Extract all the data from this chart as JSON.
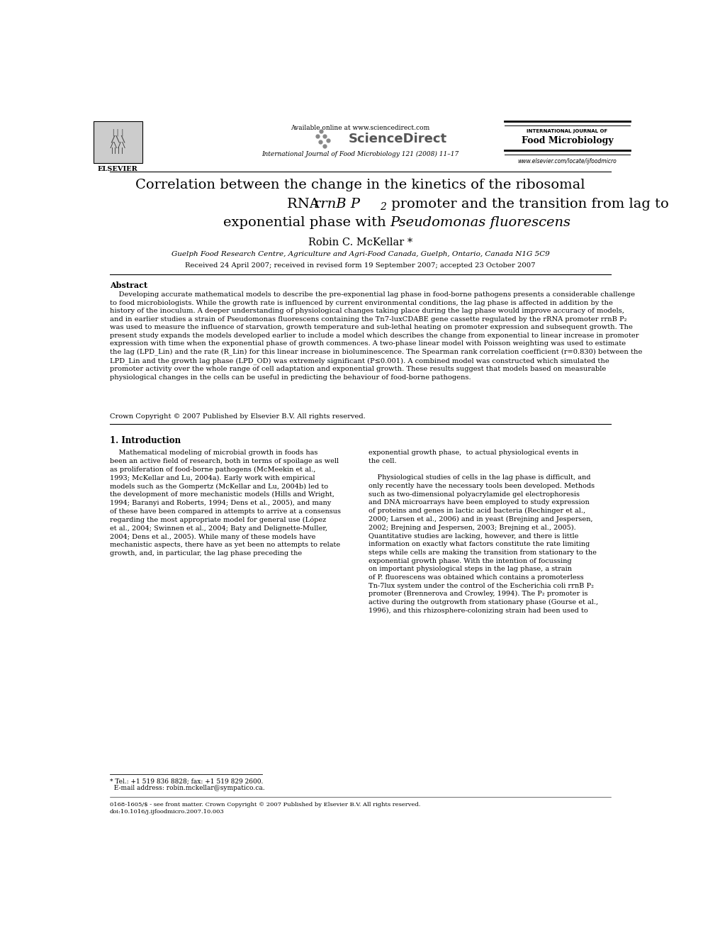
{
  "bg_color": "#ffffff",
  "author": "Robin C. McKellar *",
  "affiliation": "Guelph Food Research Centre, Agriculture and Agri-Food Canada, Guelph, Ontario, Canada N1G 5C9",
  "received": "Received 24 April 2007; received in revised form 19 September 2007; accepted 23 October 2007",
  "journal_header": "International Journal of Food Microbiology 121 (2008) 11–17",
  "available_online": "Available online at www.sciencedirect.com",
  "journal_name_top": "INTERNATIONAL JOURNAL OF",
  "journal_name_bottom": "Food Microbiology",
  "elsevier_label": "ELSEVIER",
  "website": "www.elsevier.com/locate/ijfoodmicro",
  "abstract_heading": "Abstract",
  "crown_copyright": "Crown Copyright © 2007 Published by Elsevier B.V. All rights reserved.",
  "intro_heading": "1. Introduction",
  "footer_left": "0168-1605/$ - see front matter. Crown Copyright © 2007 Published by Elsevier B.V. All rights reserved.",
  "footer_doi": "doi:10.1016/j.ijfoodmicro.2007.10.003",
  "link_color": "#1a0dab"
}
